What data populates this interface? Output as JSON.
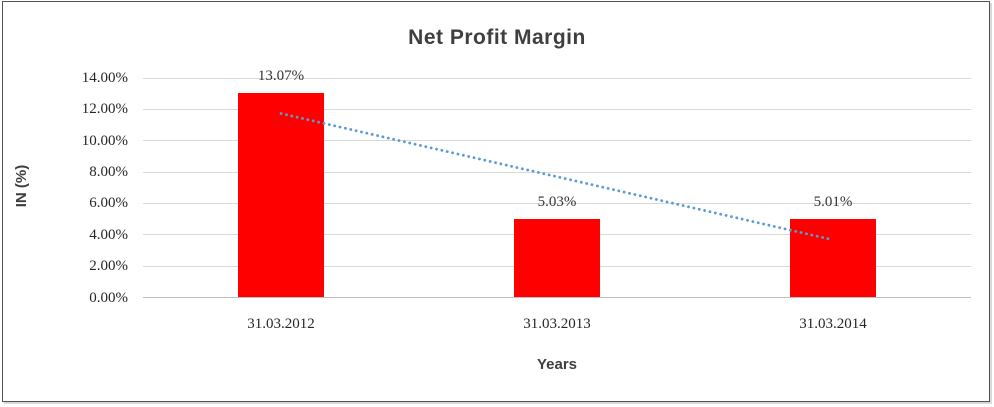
{
  "chart_data": {
    "type": "bar",
    "title": "Net Profit Margin",
    "xlabel": "Years",
    "ylabel": "IN (%)",
    "categories": [
      "31.03.2012",
      "31.03.2013",
      "31.03.2014"
    ],
    "values": [
      13.07,
      5.03,
      5.01
    ],
    "data_labels": [
      "13.07%",
      "5.03%",
      "5.01%"
    ],
    "ylim": [
      0,
      14
    ],
    "y_tick_step": 2,
    "y_tick_labels": [
      "0.00%",
      "2.00%",
      "4.00%",
      "6.00%",
      "8.00%",
      "10.00%",
      "12.00%",
      "14.00%"
    ],
    "grid": true,
    "legend": "none",
    "bar_color": "#ff0000",
    "gridline_color": "#d9d9d9",
    "axis_line_color": "#bfbfbf",
    "title_color": "#3f3f3f",
    "trendline": {
      "type": "linear",
      "style": "dotted",
      "color": "#5b9bd5"
    }
  }
}
